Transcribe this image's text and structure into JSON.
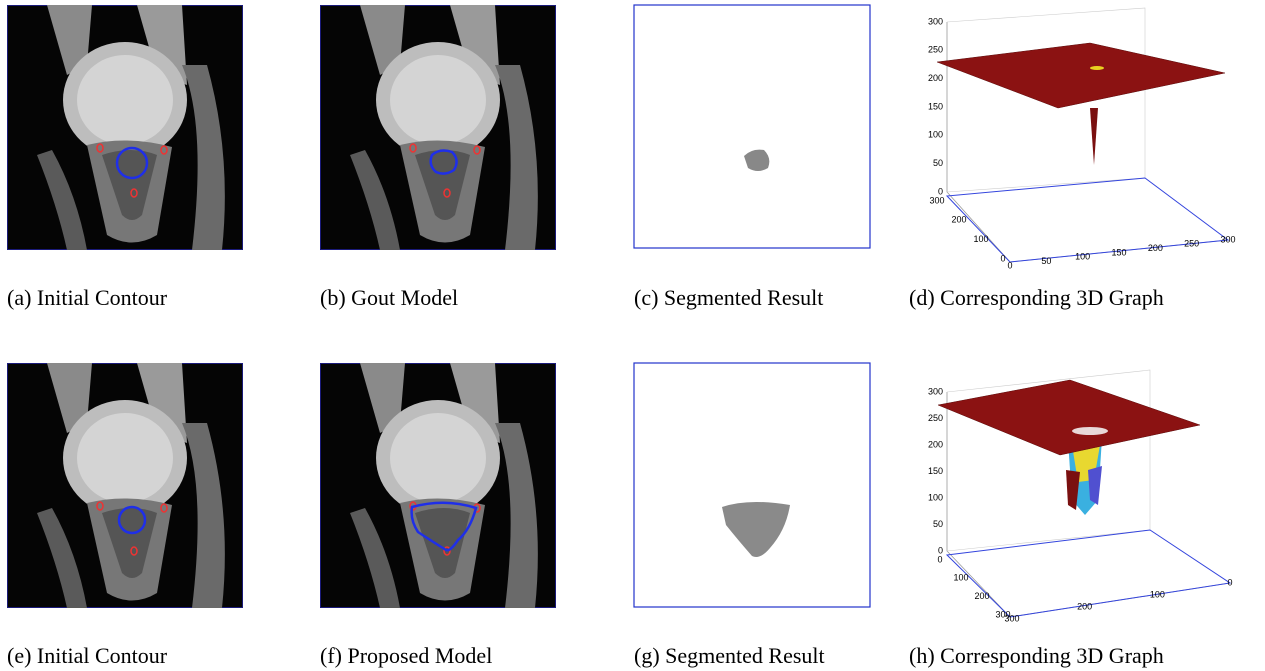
{
  "panels": [
    {
      "caption": "(a) Initial Contour"
    },
    {
      "caption": "(b) Gout Model"
    },
    {
      "caption": "(c) Segmented Result"
    },
    {
      "caption": "(d) Corresponding 3D Graph"
    },
    {
      "caption": "(e) Initial Contour"
    },
    {
      "caption": "(f) Proposed Model"
    },
    {
      "caption": "(g) Segmented Result"
    },
    {
      "caption": "(h) Corresponding 3D Graph"
    }
  ],
  "graphs": [
    {
      "zticks": [
        0,
        50,
        100,
        150,
        200,
        250,
        300
      ],
      "yticks": [
        300,
        200,
        100,
        0
      ],
      "xticks": [
        0,
        50,
        100,
        150,
        200,
        250,
        300
      ]
    },
    {
      "zticks": [
        0,
        50,
        100,
        150,
        200,
        250,
        300
      ],
      "yticks": [
        0,
        100,
        200,
        300
      ],
      "xticks": [
        300,
        200,
        100,
        0
      ]
    }
  ]
}
